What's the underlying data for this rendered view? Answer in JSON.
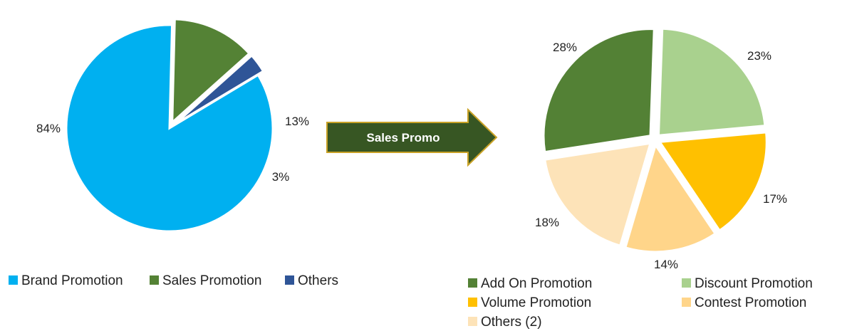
{
  "chart_data": [
    {
      "type": "pie",
      "slices": [
        {
          "label": "Brand Promotion",
          "value": 84,
          "value_label": "84%",
          "color": "#00B0F0"
        },
        {
          "label": "Sales Promotion",
          "value": 13,
          "value_label": "13%",
          "color": "#548235"
        },
        {
          "label": "Others",
          "value": 3,
          "value_label": "3%",
          "color": "#2F5597"
        }
      ],
      "exploded_slices": [
        "Sales Promotion",
        "Others"
      ],
      "legend": [
        "Brand Promotion",
        "Sales Promotion",
        "Others"
      ],
      "legend_position": "bottom"
    },
    {
      "type": "pie",
      "slices": [
        {
          "label": "Add On Promotion",
          "value": 28,
          "value_label": "28%",
          "color": "#538135"
        },
        {
          "label": "Discount Promotion",
          "value": 23,
          "value_label": "23%",
          "color": "#A9D18E"
        },
        {
          "label": "Volume Promotion",
          "value": 17,
          "value_label": "17%",
          "color": "#FFC000"
        },
        {
          "label": "Contest Promotion",
          "value": 14,
          "value_label": "14%",
          "color": "#FFD58A"
        },
        {
          "label": "Others (2)",
          "value": 18,
          "value_label": "18%",
          "color": "#FDE3B8"
        }
      ],
      "exploded": true,
      "legend": [
        "Add On Promotion",
        "Discount Promotion",
        "Volume Promotion",
        "Contest Promotion",
        "Others (2)"
      ],
      "legend_position": "bottom"
    }
  ],
  "connector": {
    "label": "Sales Promo",
    "color": "#375623",
    "border_color": "#C9A227"
  }
}
